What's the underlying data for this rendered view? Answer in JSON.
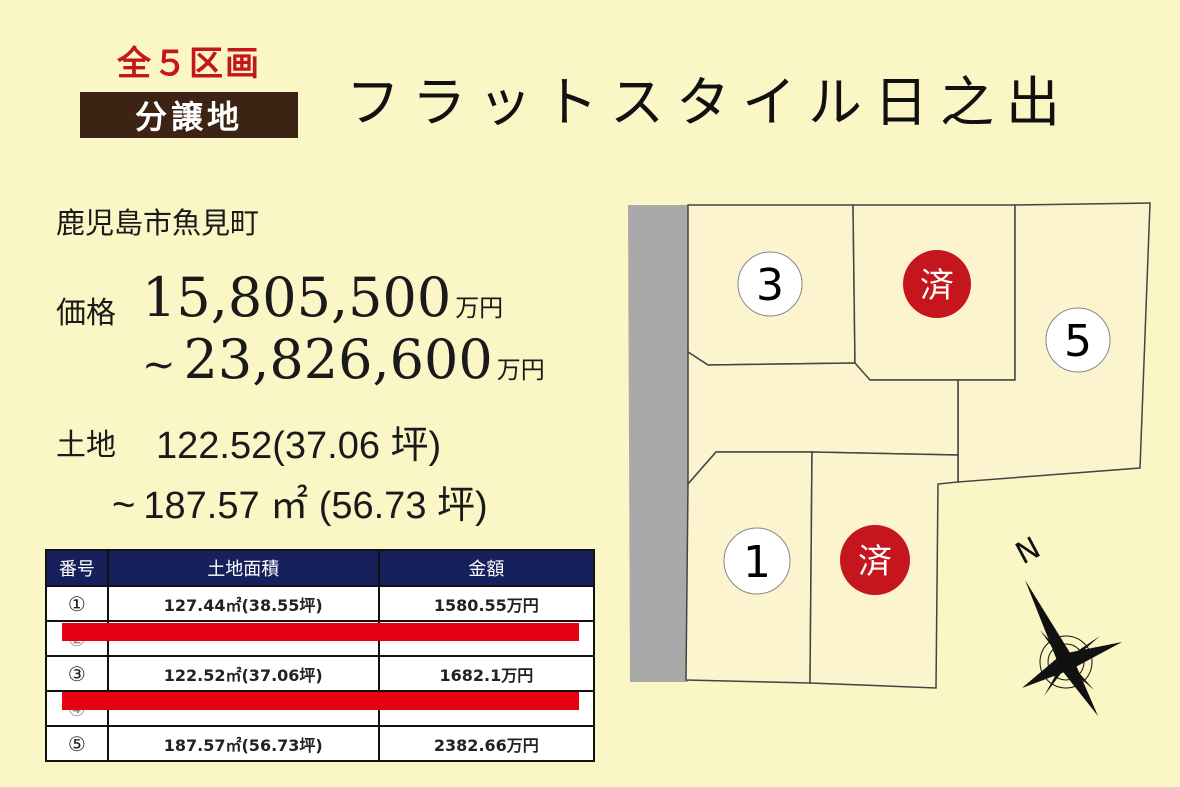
{
  "header": {
    "count_label": "全５区画",
    "badge_label": "分譲地",
    "title": "フラットスタイル日之出"
  },
  "info": {
    "address": "鹿児島市魚見町",
    "price_label": "価格",
    "price_min": "15,805,500",
    "price_max": "23,826,600",
    "price_unit": "万円",
    "tilde": "~",
    "land_label": "土地",
    "land_min": "122.52(37.06 坪)",
    "land_max": "187.57 ㎡ (56.73 坪)"
  },
  "table": {
    "headers": [
      "番号",
      "土地面積",
      "金額"
    ],
    "rows": [
      {
        "num": "①",
        "area": "127.44㎡(38.55坪)",
        "price": "1580.55万円",
        "redacted": false
      },
      {
        "num": "②",
        "area": "",
        "price": "",
        "redacted": true
      },
      {
        "num": "③",
        "area": "122.52㎡(37.06坪)",
        "price": "1682.1万円",
        "redacted": false
      },
      {
        "num": "④",
        "area": "",
        "price": "",
        "redacted": true
      },
      {
        "num": "⑤",
        "area": "187.57㎡(56.73坪)",
        "price": "2382.66万円",
        "redacted": false
      }
    ]
  },
  "map": {
    "lots": [
      {
        "label": "3",
        "sold": false
      },
      {
        "label": "済",
        "sold": true
      },
      {
        "label": "5",
        "sold": false
      },
      {
        "label": "1",
        "sold": false
      },
      {
        "label": "済",
        "sold": true
      }
    ],
    "compass_label": "N",
    "colors": {
      "road": "#a9a9a9",
      "lot_fill": "#fbf4cf",
      "sold_red": "#c4161c",
      "redaction": "#e60012"
    }
  }
}
